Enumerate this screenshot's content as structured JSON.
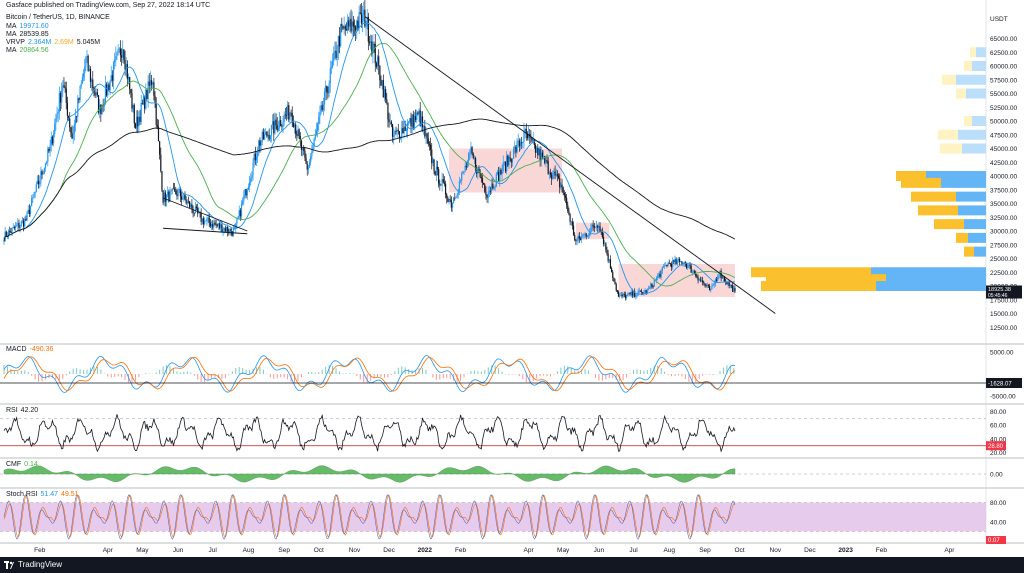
{
  "header": {
    "publisher": "Gasface published on TradingView.com, Sep 27, 2022 18:14 UTC",
    "symbol": "Bitcoin / TetherUS, 1D, BINANCE"
  },
  "legend": {
    "ma1": {
      "label": "MA",
      "value": "19971.60",
      "color": "#2196f3"
    },
    "ma2": {
      "label": "MA",
      "value": "28539.85",
      "color": "#131722"
    },
    "vrvp": {
      "label": "VRVP",
      "v1": "2.364M",
      "v2": "2.69M",
      "v3": "5.045M"
    },
    "ma3": {
      "label": "MA",
      "value": "20864.56",
      "color": "#4caf50"
    }
  },
  "panes": {
    "macd_label": "MACD",
    "macd_value": "-490.36",
    "rsi_label": "RSI",
    "rsi_value": "42.20",
    "cmf_label": "CMF",
    "cmf_value": "0.14",
    "stoch_label": "Stoch RSI",
    "stoch_v1": "51.47",
    "stoch_v2": "49.51"
  },
  "footer": {
    "brand": "TradingView"
  },
  "colors": {
    "up": "#2196f3",
    "down": "#131722",
    "ma_fast": "#2196f3",
    "ma_mid": "#4caf50",
    "ma_slow": "#131722",
    "zone": "#f8c9c9",
    "vp_up": "#64b5f6",
    "vp_down": "#fbc02d",
    "stoch_fill": "#e1bee7",
    "cmf": "#4caf50",
    "rsi_line": "#b71c1c"
  },
  "chart_data": {
    "type": "candlestick",
    "title": "Bitcoin / TetherUS, 1D, BINANCE",
    "y_axis_unit": "USDT",
    "y_ticks": [
      65000,
      62500,
      60000,
      57500,
      55000,
      52500,
      50000,
      47500,
      45000,
      42500,
      40000,
      37500,
      35000,
      32500,
      30000,
      27500,
      25000,
      22500,
      20000,
      17500,
      15000,
      12500
    ],
    "ylim": [
      10000,
      70000
    ],
    "price_tags": [
      {
        "value": "18925.38",
        "sub": "05:45:46",
        "color": "#131722"
      }
    ],
    "x_ticks": [
      "Feb",
      "Apr",
      "May",
      "Jun",
      "Jul",
      "Aug",
      "Sep",
      "Oct",
      "Nov",
      "Dec",
      "2022",
      "Feb",
      "Apr",
      "May",
      "Jun",
      "Jul",
      "Aug",
      "Sep",
      "Oct",
      "Nov",
      "Dec",
      "2023",
      "Feb",
      "Apr"
    ],
    "close_path": [
      [
        "2021-01-01",
        29000
      ],
      [
        "2021-01-20",
        32000
      ],
      [
        "2021-02-10",
        45000
      ],
      [
        "2021-02-21",
        57000
      ],
      [
        "2021-03-01",
        47000
      ],
      [
        "2021-03-13",
        61000
      ],
      [
        "2021-03-25",
        52000
      ],
      [
        "2021-04-14",
        64000
      ],
      [
        "2021-04-25",
        49000
      ],
      [
        "2021-05-10",
        58000
      ],
      [
        "2021-05-19",
        36000
      ],
      [
        "2021-06-01",
        37000
      ],
      [
        "2021-06-22",
        32000
      ],
      [
        "2021-07-20",
        29800
      ],
      [
        "2021-08-10",
        46000
      ],
      [
        "2021-09-07",
        52000
      ],
      [
        "2021-09-21",
        41000
      ],
      [
        "2021-10-20",
        66000
      ],
      [
        "2021-11-10",
        68800
      ],
      [
        "2021-11-25",
        57000
      ],
      [
        "2021-12-04",
        47000
      ],
      [
        "2021-12-27",
        51000
      ],
      [
        "2022-01-10",
        41000
      ],
      [
        "2022-01-24",
        35000
      ],
      [
        "2022-02-10",
        44000
      ],
      [
        "2022-02-24",
        37000
      ],
      [
        "2022-03-29",
        47500
      ],
      [
        "2022-04-30",
        38000
      ],
      [
        "2022-05-12",
        28000
      ],
      [
        "2022-06-01",
        31500
      ],
      [
        "2022-06-18",
        18000
      ],
      [
        "2022-07-13",
        19000
      ],
      [
        "2022-07-30",
        24000
      ],
      [
        "2022-08-14",
        24400
      ],
      [
        "2022-09-06",
        19000
      ],
      [
        "2022-09-13",
        22500
      ],
      [
        "2022-09-27",
        19000
      ]
    ],
    "zones": [
      {
        "from": "2022-01-22",
        "to": "2022-04-30",
        "low": 37000,
        "high": 45000
      },
      {
        "from": "2022-05-12",
        "to": "2022-06-10",
        "low": 28500,
        "high": 31500
      },
      {
        "from": "2022-06-18",
        "to": "2022-09-27",
        "low": 18000,
        "high": 24000
      }
    ],
    "trendlines": [
      {
        "from": [
          "2021-11-10",
          69000
        ],
        "to": [
          "2022-11-01",
          15000
        ]
      },
      {
        "from": [
          "2021-05-19",
          36000
        ],
        "to": [
          "2021-07-31",
          30000
        ]
      },
      {
        "from": [
          "2021-05-19",
          30500
        ],
        "to": [
          "2021-07-31",
          29500
        ]
      }
    ],
    "macd": {
      "label": "MACD",
      "value": -490.36,
      "ticks": [
        5000,
        -5000
      ],
      "tag": "-1628.07"
    },
    "rsi": {
      "label": "RSI",
      "value": 42.2,
      "ticks": [
        80,
        60,
        40,
        20
      ],
      "tag": "28.80"
    },
    "cmf": {
      "label": "CMF",
      "value": 0.14,
      "ticks": [
        0
      ]
    },
    "stoch_rsi": {
      "label": "Stoch RSI",
      "values": [
        51.47,
        49.51
      ],
      "ticks": [
        80,
        40
      ],
      "tag": "0.07"
    }
  }
}
